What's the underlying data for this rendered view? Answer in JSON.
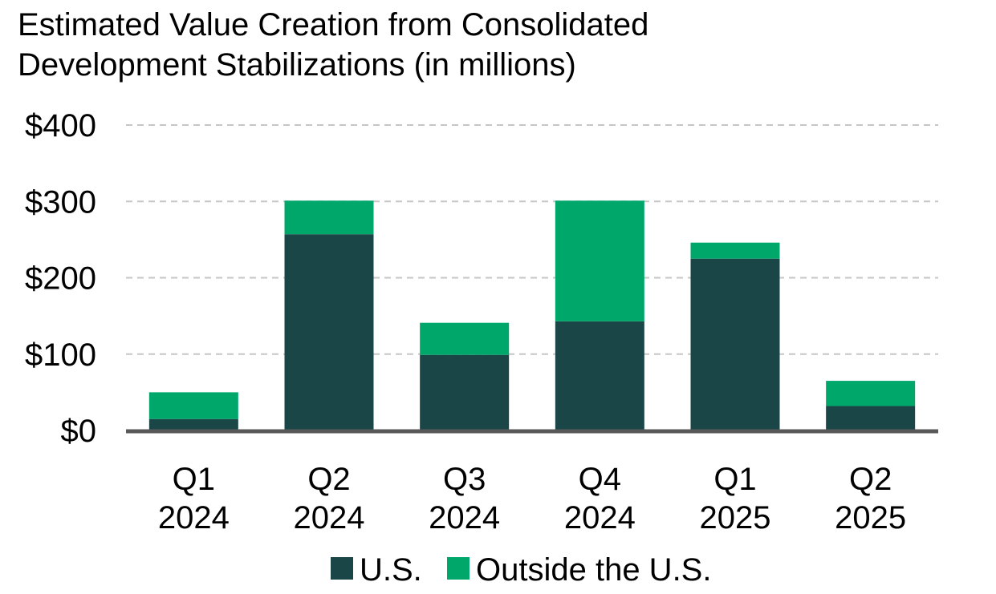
{
  "chart_data": {
    "type": "bar",
    "stacked": true,
    "title_lines": [
      "Estimated Value Creation from Consolidated",
      "Development Stabilizations (in millions)"
    ],
    "categories": [
      [
        "Q1",
        "2024"
      ],
      [
        "Q2",
        "2024"
      ],
      [
        "Q3",
        "2024"
      ],
      [
        "Q4",
        "2024"
      ],
      [
        "Q1",
        "2025"
      ],
      [
        "Q2",
        "2025"
      ]
    ],
    "series": [
      {
        "name": "U.S.",
        "color": "#1b4647",
        "values": [
          15,
          257,
          99,
          143,
          225,
          32
        ]
      },
      {
        "name": "Outside the U.S.",
        "color": "#00a76b",
        "values": [
          35,
          44,
          42,
          158,
          21,
          33
        ]
      }
    ],
    "y_ticks": [
      {
        "value": 0,
        "label": "$0"
      },
      {
        "value": 100,
        "label": "$100"
      },
      {
        "value": 200,
        "label": "$200"
      },
      {
        "value": 300,
        "label": "$300"
      },
      {
        "value": 400,
        "label": "$400"
      }
    ],
    "ylim": [
      0,
      400
    ],
    "grid": true,
    "legend_position": "bottom-center",
    "xlabel": "",
    "ylabel": ""
  }
}
